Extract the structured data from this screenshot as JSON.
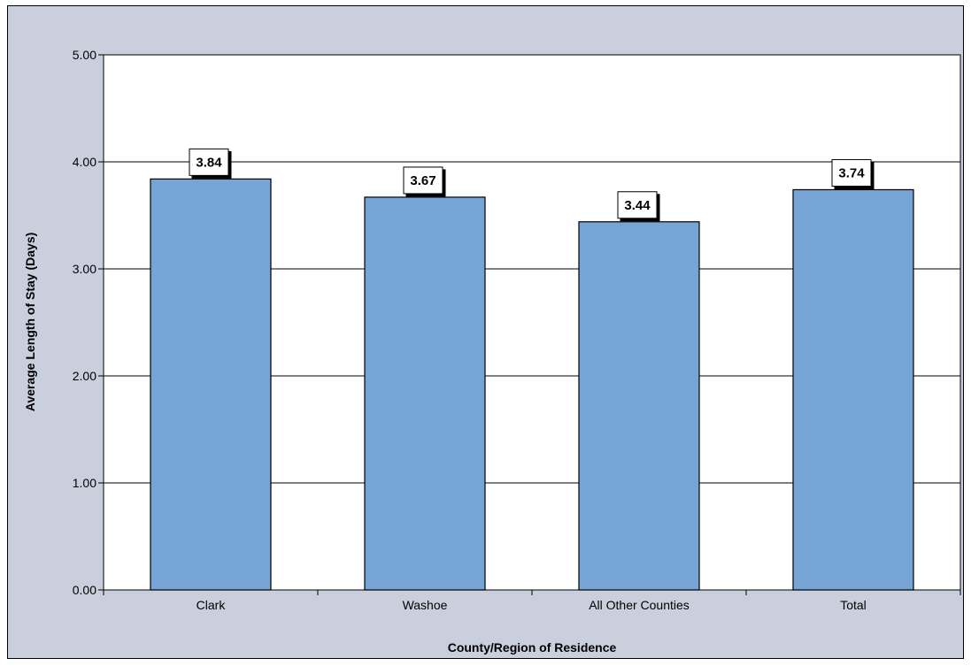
{
  "chart_data": {
    "type": "bar",
    "categories": [
      "Clark",
      "Washoe",
      "All Other Counties",
      "Total"
    ],
    "values": [
      3.84,
      3.67,
      3.44,
      3.74
    ],
    "data_labels": [
      "3.84",
      "3.67",
      "3.44",
      "3.74"
    ],
    "xlabel": "County/Region of Residence",
    "ylabel": "Average Length of Stay (Days)",
    "ylim": [
      0,
      5
    ],
    "yticks": [
      0,
      1,
      2,
      3,
      4,
      5
    ],
    "ytick_labels": [
      "0.00",
      "1.00",
      "2.00",
      "3.00",
      "4.00",
      "5.00"
    ],
    "grid": true,
    "legend": "none",
    "colors": {
      "bar_fill": "#76a5d5",
      "bar_stroke": "#000000",
      "chart_area_bg": "#c9cfdd",
      "plot_area_bg": "#ffffff",
      "gridline": "#000000"
    }
  }
}
